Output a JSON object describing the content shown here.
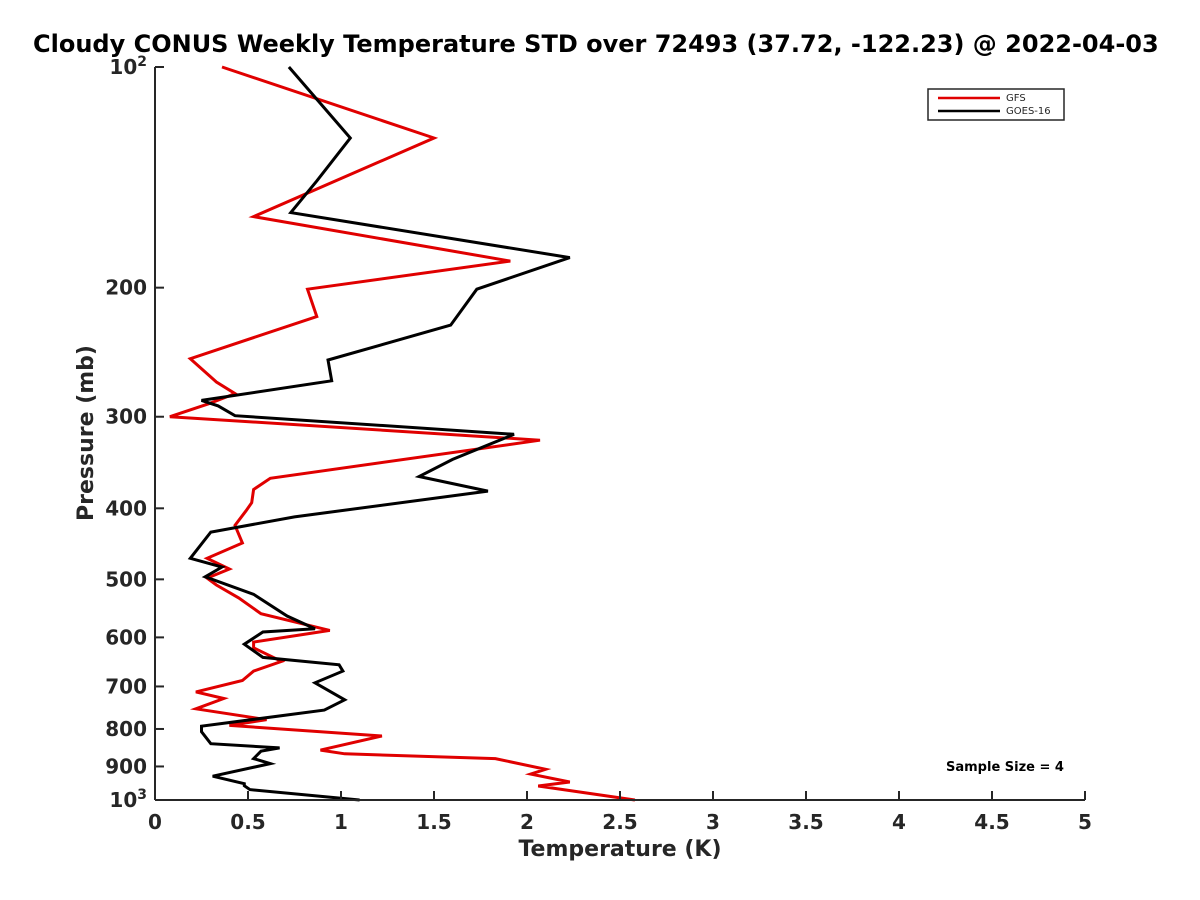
{
  "chart_data": {
    "type": "line",
    "title": "Cloudy CONUS Weekly Temperature STD over 72493 (37.72, -122.23) @ 2022-04-03",
    "xlabel": "Temperature (K)",
    "ylabel": "Pressure (mb)",
    "xlim": [
      0,
      5
    ],
    "ylim": [
      100,
      1000
    ],
    "yscale": "log",
    "y_reversed": true,
    "grid": false,
    "legend_position": "top-right",
    "x_ticks": [
      {
        "value": 0,
        "label": "0"
      },
      {
        "value": 0.5,
        "label": "0.5"
      },
      {
        "value": 1,
        "label": "1"
      },
      {
        "value": 1.5,
        "label": "1.5"
      },
      {
        "value": 2,
        "label": "2"
      },
      {
        "value": 2.5,
        "label": "2.5"
      },
      {
        "value": 3,
        "label": "3"
      },
      {
        "value": 3.5,
        "label": "3.5"
      },
      {
        "value": 4,
        "label": "4"
      },
      {
        "value": 4.5,
        "label": "4.5"
      },
      {
        "value": 5,
        "label": "5"
      }
    ],
    "y_ticks": [
      {
        "value": 100,
        "label": "10",
        "exp": "2"
      },
      {
        "value": 200,
        "label": "200"
      },
      {
        "value": 300,
        "label": "300"
      },
      {
        "value": 400,
        "label": "400"
      },
      {
        "value": 500,
        "label": "500"
      },
      {
        "value": 600,
        "label": "600"
      },
      {
        "value": 700,
        "label": "700"
      },
      {
        "value": 800,
        "label": "800"
      },
      {
        "value": 900,
        "label": "900"
      },
      {
        "value": 1000,
        "label": "10",
        "exp": "3"
      }
    ],
    "annotation": "Sample Size = 4",
    "series": [
      {
        "name": "GFS",
        "color": "#e00000",
        "points": [
          [
            0.36,
            100
          ],
          [
            1.5,
            125
          ],
          [
            0.53,
            160
          ],
          [
            1.91,
            184
          ],
          [
            0.82,
            201
          ],
          [
            0.87,
            219
          ],
          [
            0.19,
            250
          ],
          [
            0.33,
            269
          ],
          [
            0.43,
            279
          ],
          [
            0.29,
            288
          ],
          [
            0.08,
            300
          ],
          [
            2.07,
            323
          ],
          [
            0.62,
            364
          ],
          [
            0.53,
            377
          ],
          [
            0.52,
            393
          ],
          [
            0.49,
            403
          ],
          [
            0.43,
            422
          ],
          [
            0.47,
            446
          ],
          [
            0.28,
            468
          ],
          [
            0.4,
            484
          ],
          [
            0.28,
            498
          ],
          [
            0.33,
            509
          ],
          [
            0.45,
            530
          ],
          [
            0.57,
            557
          ],
          [
            0.94,
            587
          ],
          [
            0.53,
            609
          ],
          [
            0.53,
            620
          ],
          [
            0.68,
            647
          ],
          [
            0.53,
            667
          ],
          [
            0.47,
            687
          ],
          [
            0.22,
            712
          ],
          [
            0.37,
            727
          ],
          [
            0.22,
            751
          ],
          [
            0.6,
            777
          ],
          [
            0.4,
            791
          ],
          [
            1.22,
            818
          ],
          [
            0.89,
            855
          ],
          [
            1.02,
            865
          ],
          [
            1.83,
            878
          ],
          [
            2.1,
            908
          ],
          [
            2.02,
            922
          ],
          [
            2.23,
            945
          ],
          [
            2.06,
            957
          ],
          [
            2.58,
            1000
          ]
        ]
      },
      {
        "name": "GOES-16",
        "color": "#000000",
        "points": [
          [
            0.72,
            100
          ],
          [
            1.05,
            125
          ],
          [
            0.87,
            143
          ],
          [
            0.73,
            158
          ],
          [
            2.23,
            182
          ],
          [
            1.73,
            201
          ],
          [
            1.59,
            225
          ],
          [
            0.93,
            251
          ],
          [
            0.95,
            268
          ],
          [
            0.25,
            285
          ],
          [
            0.34,
            290
          ],
          [
            0.43,
            299
          ],
          [
            1.93,
            317
          ],
          [
            1.6,
            343
          ],
          [
            1.42,
            362
          ],
          [
            1.79,
            379
          ],
          [
            0.75,
            411
          ],
          [
            0.3,
            431
          ],
          [
            0.19,
            468
          ],
          [
            0.36,
            481
          ],
          [
            0.27,
            496
          ],
          [
            0.53,
            524
          ],
          [
            0.71,
            561
          ],
          [
            0.86,
            584
          ],
          [
            0.58,
            590
          ],
          [
            0.48,
            613
          ],
          [
            0.58,
            639
          ],
          [
            0.99,
            654
          ],
          [
            1.01,
            667
          ],
          [
            0.86,
            692
          ],
          [
            1.02,
            730
          ],
          [
            0.91,
            754
          ],
          [
            0.25,
            793
          ],
          [
            0.25,
            807
          ],
          [
            0.3,
            838
          ],
          [
            0.67,
            849
          ],
          [
            0.57,
            858
          ],
          [
            0.53,
            878
          ],
          [
            0.62,
            892
          ],
          [
            0.31,
            928
          ],
          [
            0.48,
            950
          ],
          [
            0.48,
            956
          ],
          [
            0.51,
            968
          ],
          [
            1.1,
            1000
          ]
        ]
      }
    ]
  }
}
